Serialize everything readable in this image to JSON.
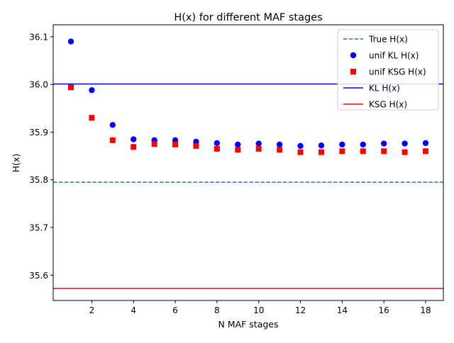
{
  "chart_data": {
    "type": "scatter",
    "title": "H(x) for different MAF stages",
    "xlabel": "N MAF stages",
    "ylabel": "H(x)",
    "xlim": [
      0.15,
      18.85
    ],
    "ylim": [
      35.547,
      36.125
    ],
    "x_ticks": [
      2,
      4,
      6,
      8,
      10,
      12,
      14,
      16,
      18
    ],
    "y_ticks": [
      35.6,
      35.7,
      35.8,
      35.9,
      36.0,
      36.1
    ],
    "x_tick_labels": [
      "2",
      "4",
      "6",
      "8",
      "10",
      "12",
      "14",
      "16",
      "18"
    ],
    "y_tick_labels": [
      "35.6",
      "35.7",
      "35.8",
      "35.9",
      "36.0",
      "36.1"
    ],
    "legend_position": "top-right",
    "grid": false,
    "hlines": [
      {
        "name": "True H(x)",
        "y": 35.795,
        "color": "#1f77b4",
        "style": "dashed"
      },
      {
        "name": "KL H(x)",
        "y": 36.001,
        "color": "#0000ff",
        "style": "solid"
      },
      {
        "name": "KSG H(x)",
        "y": 35.572,
        "color": "#ff0000",
        "style": "solid"
      }
    ],
    "x": [
      1,
      2,
      3,
      4,
      5,
      6,
      7,
      8,
      9,
      10,
      11,
      12,
      13,
      14,
      15,
      16,
      17,
      18
    ],
    "series": [
      {
        "name": "unif KL H(x)",
        "marker": "circle",
        "color": "#0000ff",
        "values": [
          36.09,
          35.988,
          35.915,
          35.885,
          35.883,
          35.883,
          35.88,
          35.877,
          35.874,
          35.876,
          35.874,
          35.871,
          35.872,
          35.874,
          35.874,
          35.876,
          35.876,
          35.877
        ]
      },
      {
        "name": "unif KSG H(x)",
        "marker": "square",
        "color": "#ff0000",
        "values": [
          35.994,
          35.93,
          35.883,
          35.869,
          35.875,
          35.874,
          35.871,
          35.865,
          35.863,
          35.865,
          35.863,
          35.858,
          35.858,
          35.86,
          35.86,
          35.86,
          35.858,
          35.86
        ]
      }
    ],
    "legend_order": [
      "True H(x)",
      "unif KL H(x)",
      "unif KSG H(x)",
      "KL H(x)",
      "KSG H(x)"
    ]
  }
}
